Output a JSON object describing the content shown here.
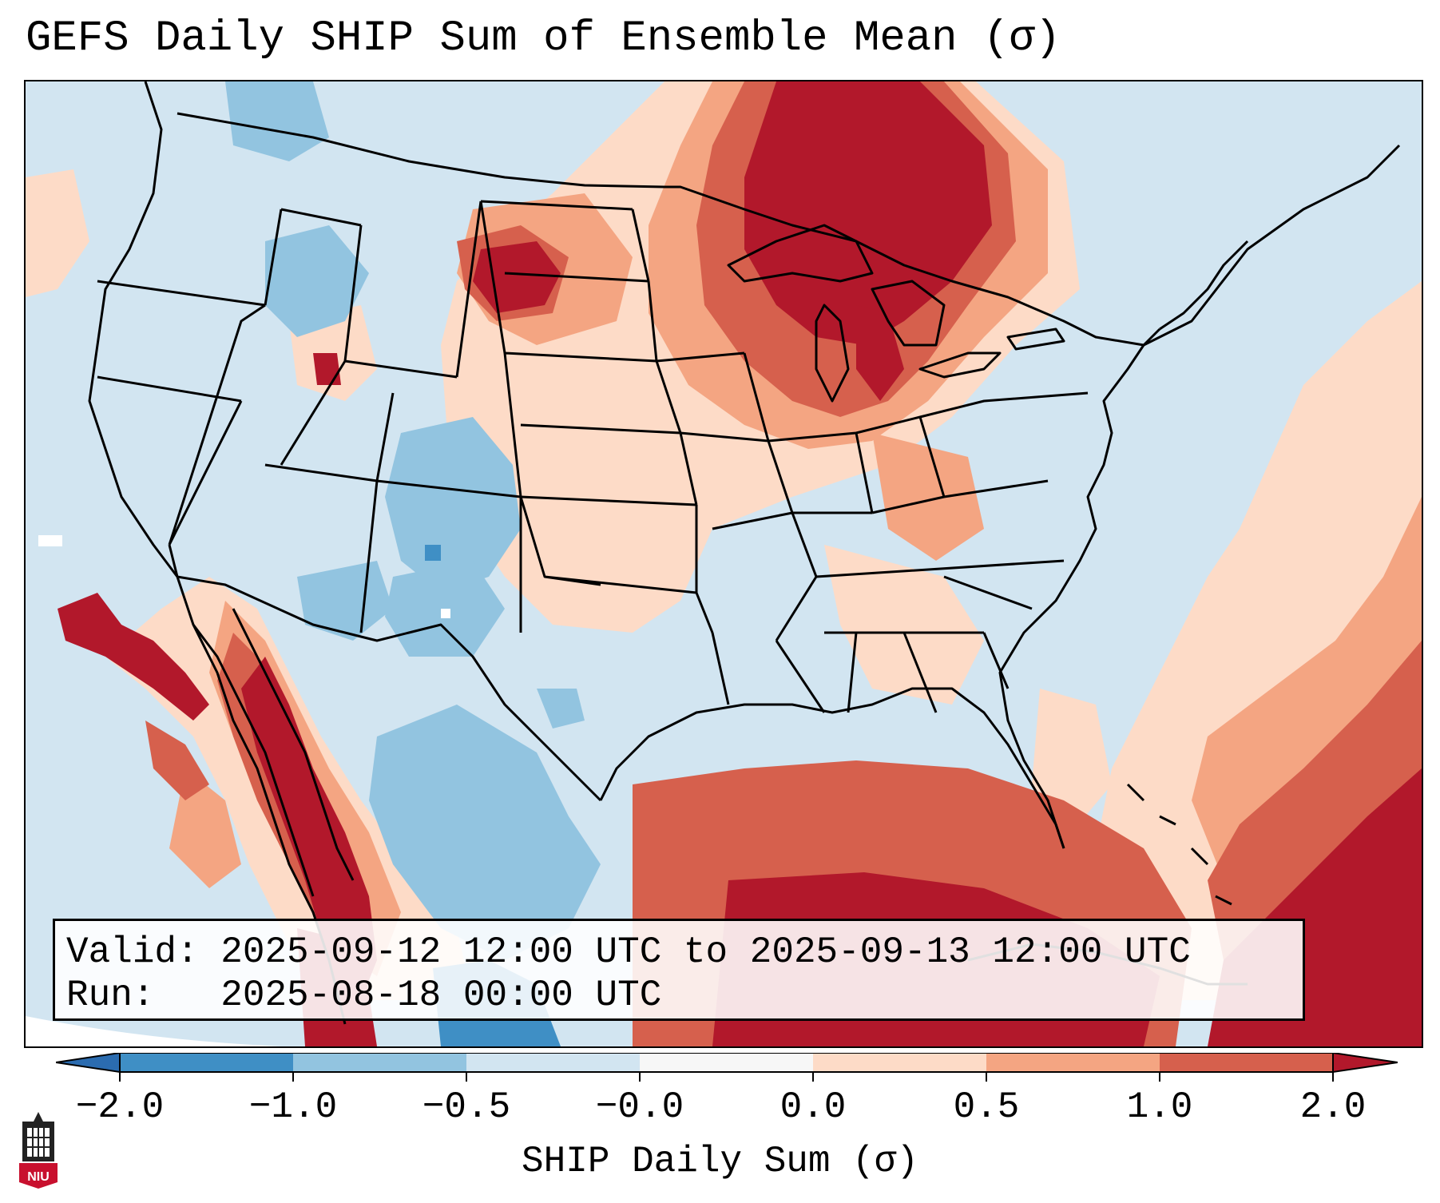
{
  "title": "GEFS Daily SHIP Sum of Ensemble Mean (σ)",
  "legend": {
    "label": "SHIP Daily Sum (σ)",
    "ticks": [
      "−2.0",
      "−1.0",
      "−0.5",
      "−0.0",
      "0.0",
      "0.5",
      "1.0",
      "2.0"
    ],
    "bins": [
      {
        "range": "< -2.0",
        "color": "#2b6cb0"
      },
      {
        "range": "-2.0 to -1.0",
        "color": "#3f8fc5"
      },
      {
        "range": "-1.0 to -0.5",
        "color": "#92c4e0"
      },
      {
        "range": "-0.5 to -0.0",
        "color": "#d2e5f1"
      },
      {
        "range": "-0.0 to 0.0",
        "color": "#f7f7f7"
      },
      {
        "range": "0.0 to 0.5",
        "color": "#fddbc7"
      },
      {
        "range": "0.5 to 1.0",
        "color": "#f4a582"
      },
      {
        "range": "1.0 to 2.0",
        "color": "#d6604d"
      },
      {
        "range": "> 2.0",
        "color": "#b2182b"
      }
    ]
  },
  "info": {
    "valid": "Valid: 2025-09-12 12:00 UTC to 2025-09-13 12:00 UTC",
    "run": "Run:   2025-08-18 00:00 UTC"
  },
  "logo": {
    "text": "NIU",
    "color": "#c8102e"
  },
  "map": {
    "region": "CONUS",
    "features": [
      "state-boundaries",
      "coastlines",
      "great-lakes",
      "country-borders"
    ],
    "background_color": "#d2e5f1"
  }
}
